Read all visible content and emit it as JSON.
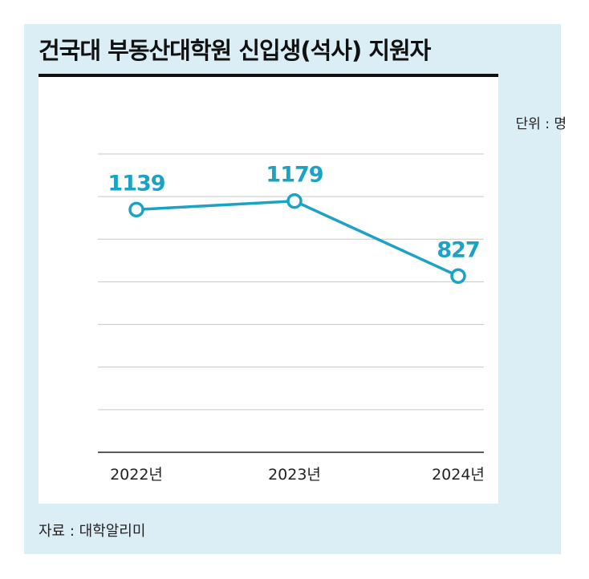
{
  "header": {
    "title": "건국대 부동산대학원 신입생(석사) 지원자"
  },
  "unit_label": "단위 : 명",
  "source": "자료 : 대학알리미",
  "colors": {
    "line": "#1aa3c4",
    "panel_background": "#dbeef5"
  },
  "chart_data": {
    "type": "line",
    "categories": [
      "2022년",
      "2023년",
      "2024년"
    ],
    "series": [
      {
        "values": [
          1139,
          1179,
          827
        ]
      }
    ],
    "data_labels": [
      "1139",
      "1179",
      "827"
    ],
    "ylim": [
      0,
      1400
    ],
    "grid": true,
    "markers": "hollow-circle"
  }
}
